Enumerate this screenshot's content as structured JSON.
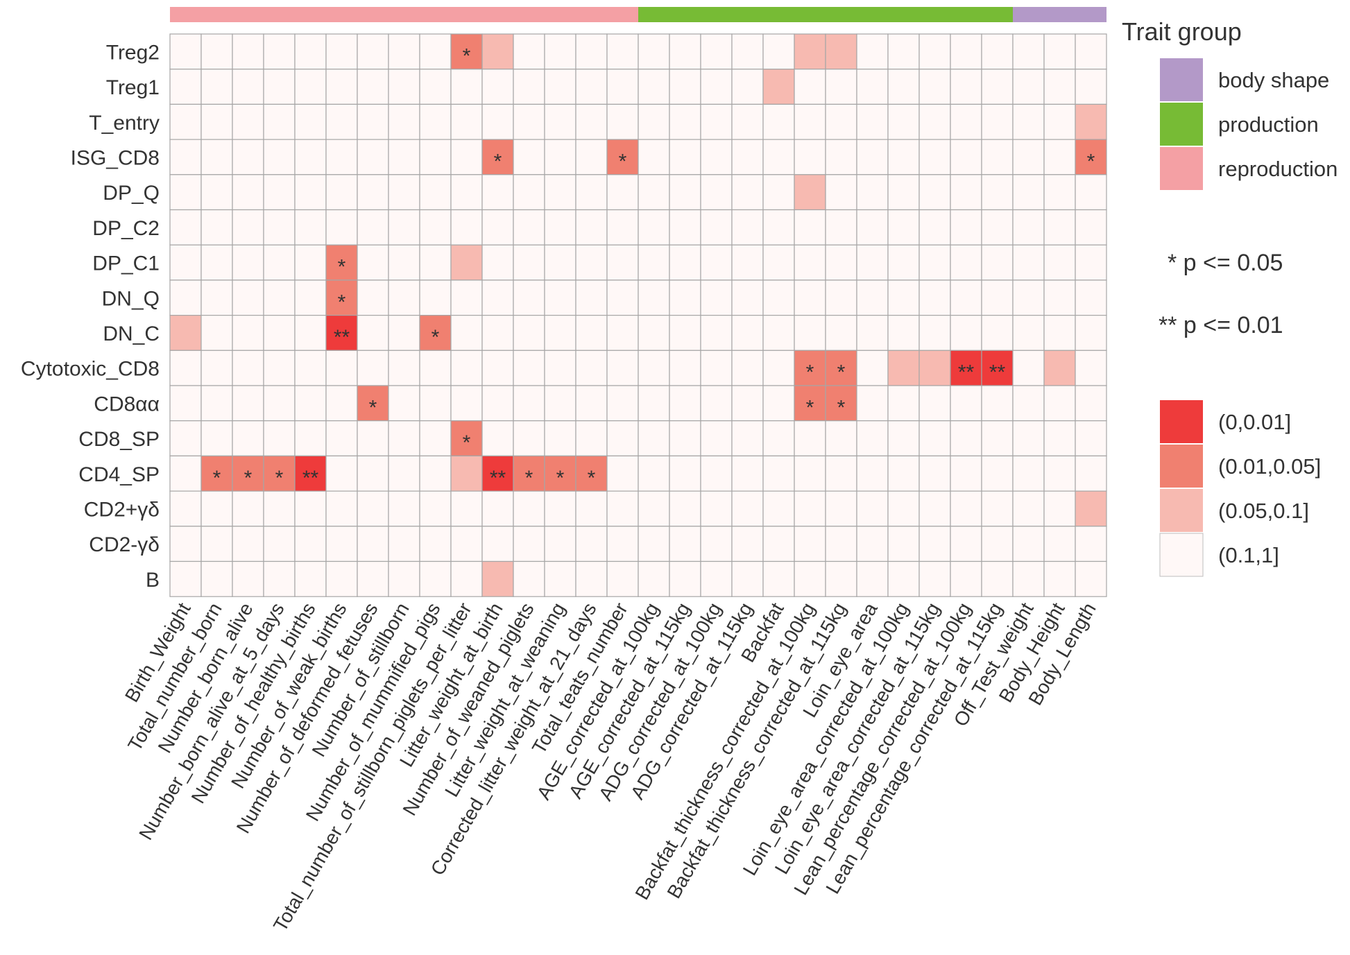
{
  "chart_data": {
    "type": "heatmap",
    "title": "",
    "xlabel": "",
    "ylabel": "",
    "rows": [
      "Treg2",
      "Treg1",
      "T_entry",
      "ISG_CD8",
      "DP_Q",
      "DP_C2",
      "DP_C1",
      "DN_Q",
      "DN_C",
      "Cytotoxic_CD8",
      "CD8αα",
      "CD8_SP",
      "CD4_SP",
      "CD2+γδ",
      "CD2-γδ",
      "B"
    ],
    "columns": [
      "Birth_Weight",
      "Total_number_born",
      "Number_born_alive",
      "Number_born_alive_at_5_days",
      "Number_of_healthy_births",
      "Number_of_weak_births",
      "Number_of_deformed_fetuses",
      "Number_of_stillborn",
      "Number_of_mummified_pigs",
      "Total_number_of_stillborn_piglets_per_litter",
      "Litter_weight_at_birth",
      "Number_of_weaned_piglets",
      "Litter_weight_at_weaning",
      "Corrected_litter_weight_at_21_days",
      "Total_teats_number",
      "AGE_corrected_at_100kg",
      "AGE_corrected_at_115kg",
      "ADG_corrected_at_100kg",
      "ADG_corrected_at_115kg",
      "Backfat",
      "Backfat_thickness_corrected_at_100kg",
      "Backfat_thickness_corrected_at_115kg",
      "Loin_eye_area",
      "Loin_eye_area_corrected_at_100kg",
      "Loin_eye_area_corrected_at_115kg",
      "Lean_percentage_corrected_at_100kg",
      "Lean_percentage_corrected_at_115kg",
      "Off_Test_weight",
      "Body_Height",
      "Body_Length"
    ],
    "column_groups": [
      "reproduction",
      "reproduction",
      "reproduction",
      "reproduction",
      "reproduction",
      "reproduction",
      "reproduction",
      "reproduction",
      "reproduction",
      "reproduction",
      "reproduction",
      "reproduction",
      "reproduction",
      "reproduction",
      "reproduction",
      "production",
      "production",
      "production",
      "production",
      "production",
      "production",
      "production",
      "production",
      "production",
      "production",
      "production",
      "production",
      "body shape",
      "body shape",
      "body shape"
    ],
    "value_bins": [
      "(0,0.01]",
      "(0.01,0.05]",
      "(0.05,0.1]",
      "(0.1,1]"
    ],
    "bin_colors": [
      "#ee3b3b",
      "#f08070",
      "#f7bab1",
      "#fff8f7"
    ],
    "cells": [
      [
        0,
        9,
        1,
        "*"
      ],
      [
        0,
        10,
        2,
        ""
      ],
      [
        0,
        20,
        2,
        ""
      ],
      [
        0,
        21,
        2,
        ""
      ],
      [
        1,
        19,
        2,
        ""
      ],
      [
        2,
        29,
        2,
        ""
      ],
      [
        3,
        10,
        1,
        "*"
      ],
      [
        3,
        14,
        1,
        "*"
      ],
      [
        3,
        29,
        1,
        "*"
      ],
      [
        4,
        20,
        2,
        ""
      ],
      [
        6,
        5,
        1,
        "*"
      ],
      [
        6,
        9,
        2,
        ""
      ],
      [
        7,
        5,
        1,
        "*"
      ],
      [
        8,
        0,
        2,
        ""
      ],
      [
        8,
        5,
        0,
        "**"
      ],
      [
        8,
        8,
        1,
        "*"
      ],
      [
        9,
        20,
        1,
        "*"
      ],
      [
        9,
        21,
        1,
        "*"
      ],
      [
        9,
        23,
        2,
        ""
      ],
      [
        9,
        24,
        2,
        ""
      ],
      [
        9,
        25,
        0,
        "**"
      ],
      [
        9,
        26,
        0,
        "**"
      ],
      [
        9,
        28,
        2,
        ""
      ],
      [
        10,
        6,
        1,
        "*"
      ],
      [
        10,
        20,
        1,
        "*"
      ],
      [
        10,
        21,
        1,
        "*"
      ],
      [
        11,
        9,
        1,
        "*"
      ],
      [
        12,
        1,
        1,
        "*"
      ],
      [
        12,
        2,
        1,
        "*"
      ],
      [
        12,
        3,
        1,
        "*"
      ],
      [
        12,
        4,
        0,
        "**"
      ],
      [
        12,
        9,
        2,
        ""
      ],
      [
        12,
        10,
        0,
        "**"
      ],
      [
        12,
        11,
        1,
        "*"
      ],
      [
        12,
        12,
        1,
        "*"
      ],
      [
        12,
        13,
        1,
        "*"
      ],
      [
        13,
        29,
        2,
        ""
      ],
      [
        15,
        10,
        2,
        ""
      ]
    ],
    "legend": {
      "trait_group_title": "Trait group",
      "trait_groups": [
        {
          "label": "body shape",
          "color": "#b399c8"
        },
        {
          "label": "production",
          "color": "#77bb35"
        },
        {
          "label": "reproduction",
          "color": "#f4a0a4"
        }
      ],
      "significance_notes": [
        "* p <= 0.05",
        "** p <= 0.01"
      ]
    },
    "grid": true
  }
}
